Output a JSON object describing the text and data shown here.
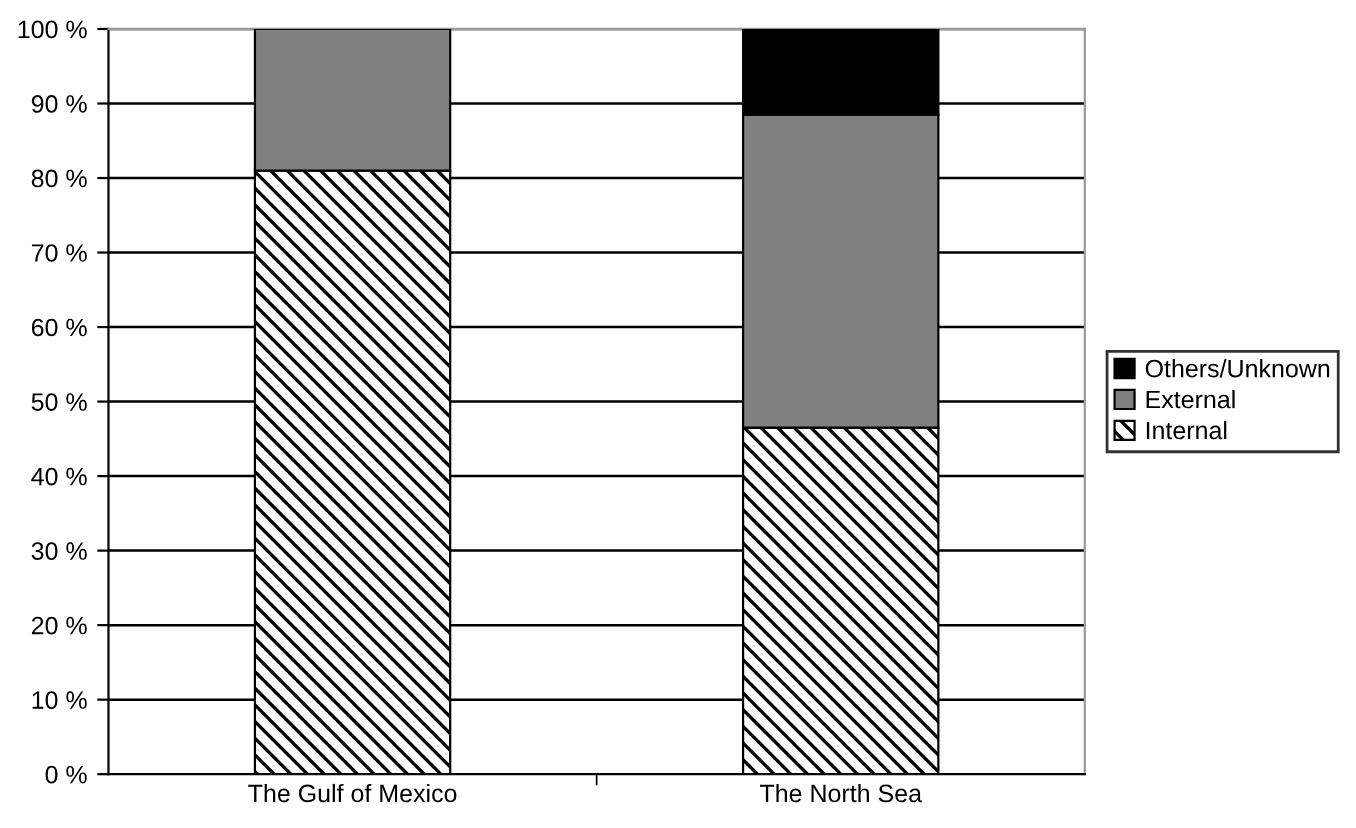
{
  "chart_data": {
    "type": "bar",
    "stacked": true,
    "categories": [
      "The Gulf of Mexico",
      "The North Sea"
    ],
    "series": [
      {
        "name": "Internal",
        "color": "#000000",
        "values": [
          81,
          46.5
        ]
      },
      {
        "name": "External",
        "color": "#808080",
        "values": [
          19,
          42
        ]
      },
      {
        "name": "Others/Unknown",
        "color": "#000000",
        "values": [
          0,
          11.5
        ]
      }
    ],
    "ylim": [
      0,
      100
    ],
    "yticks": [
      {
        "value": 0,
        "label": "0 %"
      },
      {
        "value": 10,
        "label": "10 %"
      },
      {
        "value": 20,
        "label": "20 %"
      },
      {
        "value": 30,
        "label": "30 %"
      },
      {
        "value": 40,
        "label": "40 %"
      },
      {
        "value": 50,
        "label": "50 %"
      },
      {
        "value": 60,
        "label": "60 %"
      },
      {
        "value": 70,
        "label": "70 %"
      },
      {
        "value": 80,
        "label": "80 %"
      },
      {
        "value": 90,
        "label": "90 %"
      },
      {
        "value": 100,
        "label": "100 %"
      }
    ],
    "grid": "y",
    "legend": "right"
  }
}
